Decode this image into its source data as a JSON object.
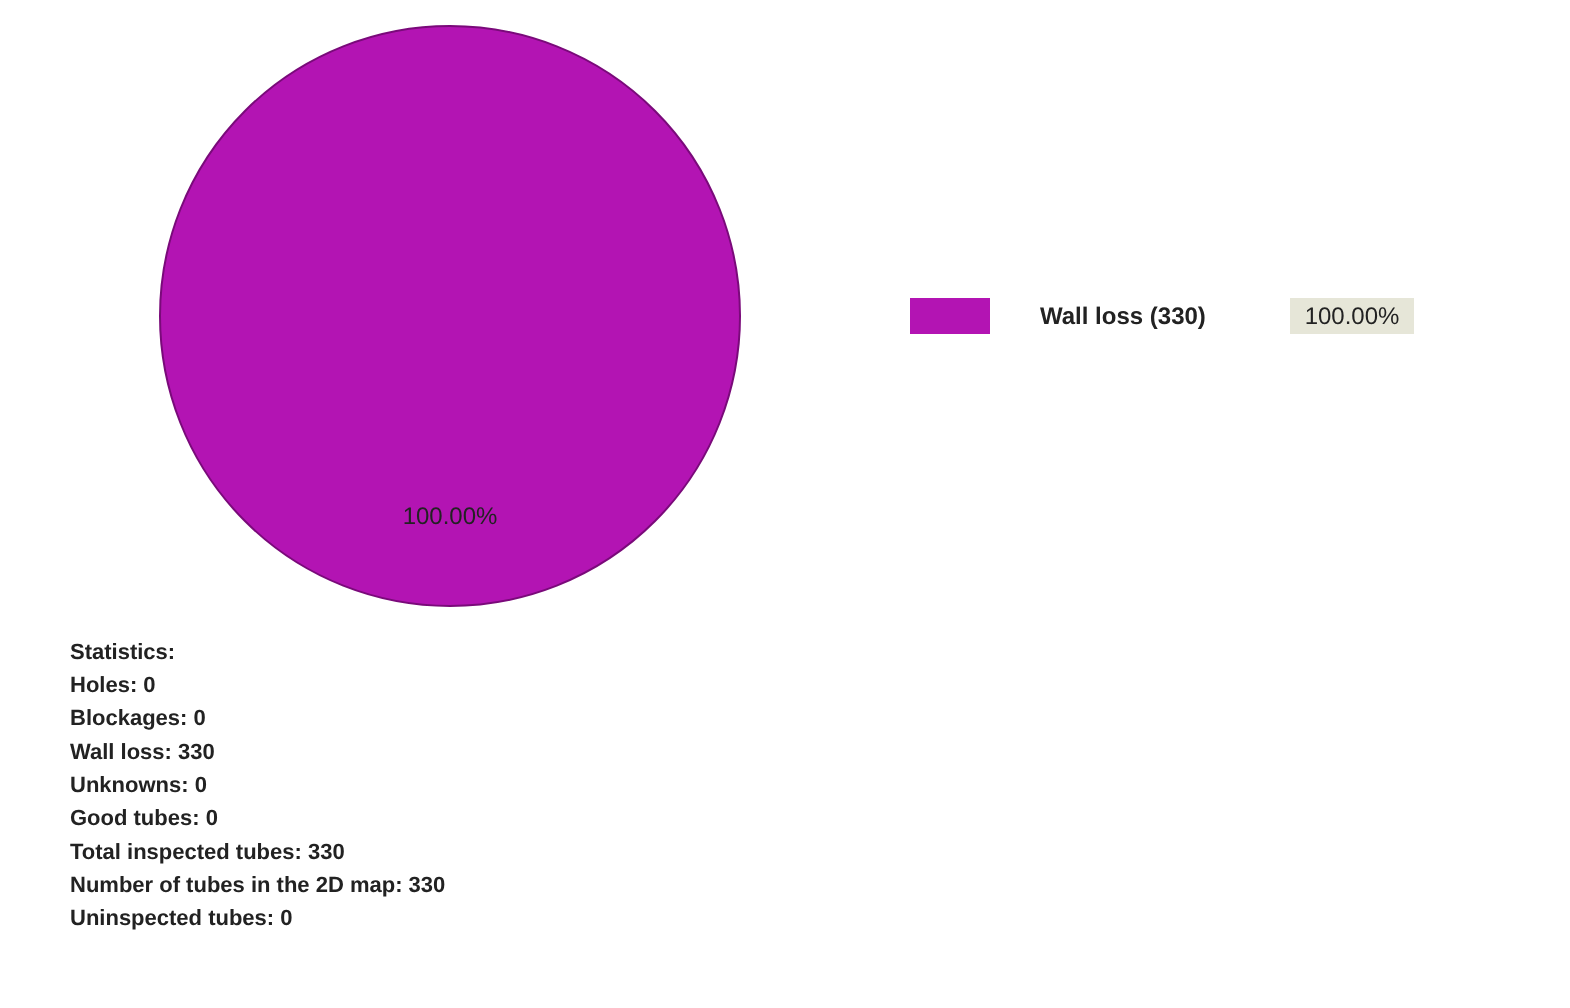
{
  "chart_data": {
    "type": "pie",
    "categories": [
      "Wall loss (330)"
    ],
    "values": [
      100
    ],
    "colors": [
      "#b314b3"
    ],
    "value_labels": [
      "100.00%"
    ],
    "legend": "right",
    "annotations": [
      "Statistics:",
      "Holes: 0",
      "Blockages: 0",
      "Wall loss: 330",
      "Unknowns: 0",
      "Good tubes: 0",
      "Total inspected tubes: 330",
      "Number of tubes in the 2D map: 330",
      "Uninspected tubes: 0"
    ]
  }
}
